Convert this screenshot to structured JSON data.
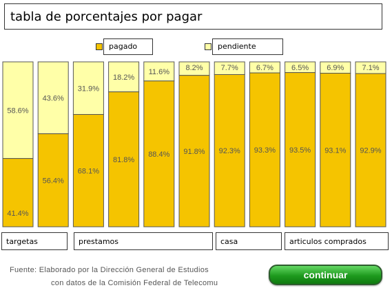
{
  "title": "tabla de porcentajes por pagar",
  "legend": {
    "paid": {
      "label": "pagado",
      "color": "#F5C400"
    },
    "pending": {
      "label": "pendiente",
      "color": "#FFFFA8"
    }
  },
  "groups": [
    {
      "label": "targetas"
    },
    {
      "label": "prestamos"
    },
    {
      "label": "casa"
    },
    {
      "label": "articulos comprados"
    }
  ],
  "source": {
    "line1": "Fuente: Elaborado por la Dirección General de Estudios",
    "line2": "con datos de la Comisión Federal de Telecomu"
  },
  "button": {
    "label": "continuar"
  },
  "chart_data": {
    "type": "bar",
    "stacked": true,
    "categories": [
      "",
      "",
      "",
      "",
      "",
      "",
      "",
      "",
      "",
      "",
      ""
    ],
    "series": [
      {
        "name": "pagado",
        "values": [
          41.4,
          56.4,
          68.1,
          81.8,
          88.4,
          91.8,
          92.3,
          93.3,
          93.5,
          93.1,
          92.9
        ],
        "labels": [
          "41.4%",
          "56.4%",
          "68.1%",
          "81.8%",
          "88.4%",
          "91.8%",
          "92.3%",
          "93.3%",
          "93.5%",
          "93.1%",
          "92.9%"
        ]
      },
      {
        "name": "pendiente",
        "values": [
          58.6,
          43.6,
          31.9,
          18.2,
          11.6,
          8.2,
          7.7,
          6.7,
          6.5,
          6.9,
          7.1
        ],
        "labels": [
          "58.6%",
          "43.6%",
          "31.9%",
          "18.2%",
          "11.6%",
          "8.2%",
          "7.7%",
          "6.7%",
          "6.5%",
          "6.9%",
          "7.1%"
        ]
      }
    ],
    "ylim": [
      0,
      100
    ],
    "grid": false,
    "legend_position": "top-center"
  }
}
